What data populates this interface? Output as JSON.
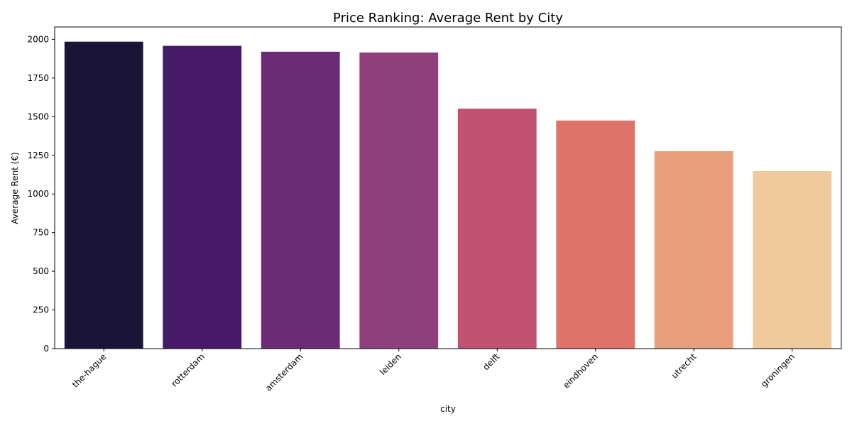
{
  "chart_data": {
    "type": "bar",
    "title": "Price Ranking: Average Rent by City",
    "xlabel": "city",
    "ylabel": "Average Rent (€)",
    "categories": [
      "the-hague",
      "rotterdam",
      "amsterdam",
      "leiden",
      "delft",
      "eindhoven",
      "utrecht",
      "groningen"
    ],
    "values": [
      1985,
      1958,
      1920,
      1915,
      1552,
      1475,
      1277,
      1148
    ],
    "ylim": [
      0,
      2080
    ],
    "yticks": [
      0,
      250,
      500,
      750,
      1000,
      1250,
      1500,
      1750,
      2000
    ],
    "grid": false,
    "legend": "none",
    "colors": [
      "#1a1537",
      "#451b69",
      "#6a2c75",
      "#8f3f79",
      "#c25272",
      "#e0726c",
      "#e99e7b",
      "#efc99b"
    ]
  }
}
